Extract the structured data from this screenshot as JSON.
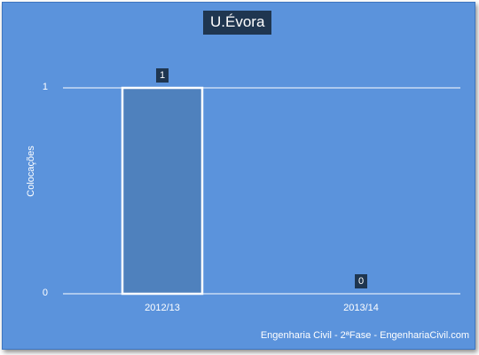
{
  "chart_data": {
    "type": "bar",
    "title": "U.Évora",
    "xlabel": "",
    "ylabel": "Colocações",
    "categories": [
      "2012/13",
      "2013/14"
    ],
    "values": [
      1,
      0
    ],
    "data_labels": [
      "1",
      "0"
    ],
    "y_ticks": [
      "0",
      "1"
    ],
    "ylim": [
      0,
      1
    ],
    "grid": true,
    "legend": "none",
    "colors": {
      "background": "#5b93dc",
      "bar_fill": "#4f81bd",
      "bar_border": "#ffffff",
      "label_box": "#1f3650",
      "gridline": "#ffffff"
    }
  },
  "footer": "Engenharia Civil - 2ªFase - EngenhariaCivil.com"
}
